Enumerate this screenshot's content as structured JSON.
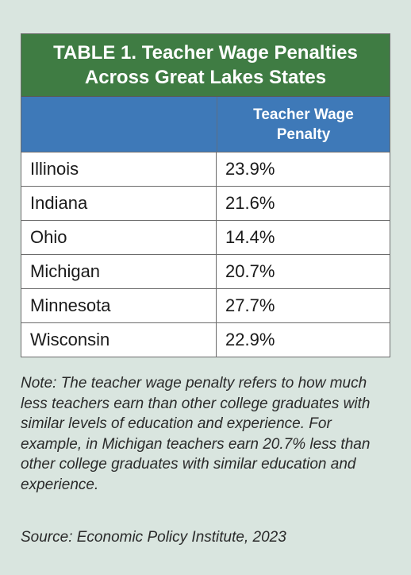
{
  "table": {
    "title": "TABLE 1. Teacher Wage Penalties\nAcross Great Lakes States",
    "header": {
      "col1": "",
      "col2": "Teacher Wage\nPenalty"
    },
    "rows": [
      {
        "state": "Illinois",
        "penalty": "23.9%"
      },
      {
        "state": "Indiana",
        "penalty": "21.6%"
      },
      {
        "state": "Ohio",
        "penalty": "14.4%"
      },
      {
        "state": "Michigan",
        "penalty": "20.7%"
      },
      {
        "state": "Minnesota",
        "penalty": "27.7%"
      },
      {
        "state": "Wisconsin",
        "penalty": "22.9%"
      }
    ]
  },
  "note": "Note: The teacher wage penalty refers to how much less teachers earn than other college graduates with similar levels of education and experience. For example, in Michigan teachers earn 20.7% less than other college graduates with similar education and experience.",
  "source": "Source: Economic Policy Institute, 2023",
  "colors": {
    "background": "#d9e5df",
    "title_bar": "#3f7c43",
    "header_bar": "#3e79b8"
  }
}
